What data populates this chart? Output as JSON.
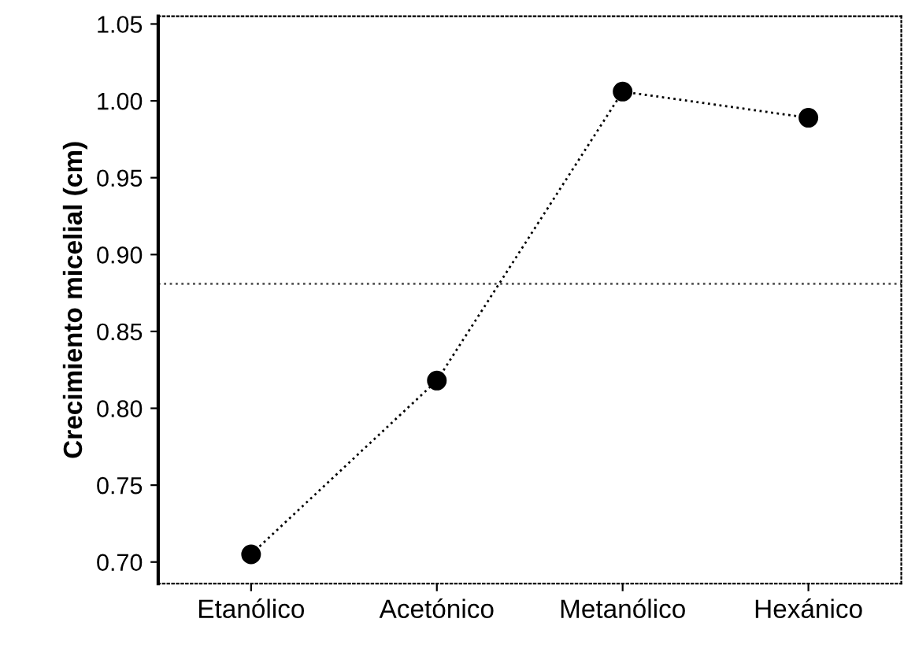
{
  "chart_data": {
    "type": "line",
    "ylabel": "Crecimiento micelial (cm)",
    "categories": [
      "Etanólico",
      "Acetónico",
      "Metanólico",
      "Hexánico"
    ],
    "series": [
      {
        "color": "#000000",
        "values": [
          0.705,
          0.818,
          1.006,
          0.989
        ]
      }
    ],
    "marker": "circle",
    "line_style": "dotted",
    "ylim": [
      0.686,
      1.055
    ],
    "yticks": [
      {
        "value": 0.7,
        "label": "0.70"
      },
      0.75,
      {
        "value": 0.8,
        "label": "0.80"
      },
      0.85,
      {
        "value": 0.9,
        "label": "0.90"
      },
      0.95,
      {
        "value": 1.0,
        "label": "1.00"
      },
      1.05
    ],
    "ref_lines": [
      {
        "axis": "y",
        "value": 0.881,
        "color": "#555555",
        "line_style": "dotted"
      }
    ],
    "grid": false,
    "legend": false
  }
}
